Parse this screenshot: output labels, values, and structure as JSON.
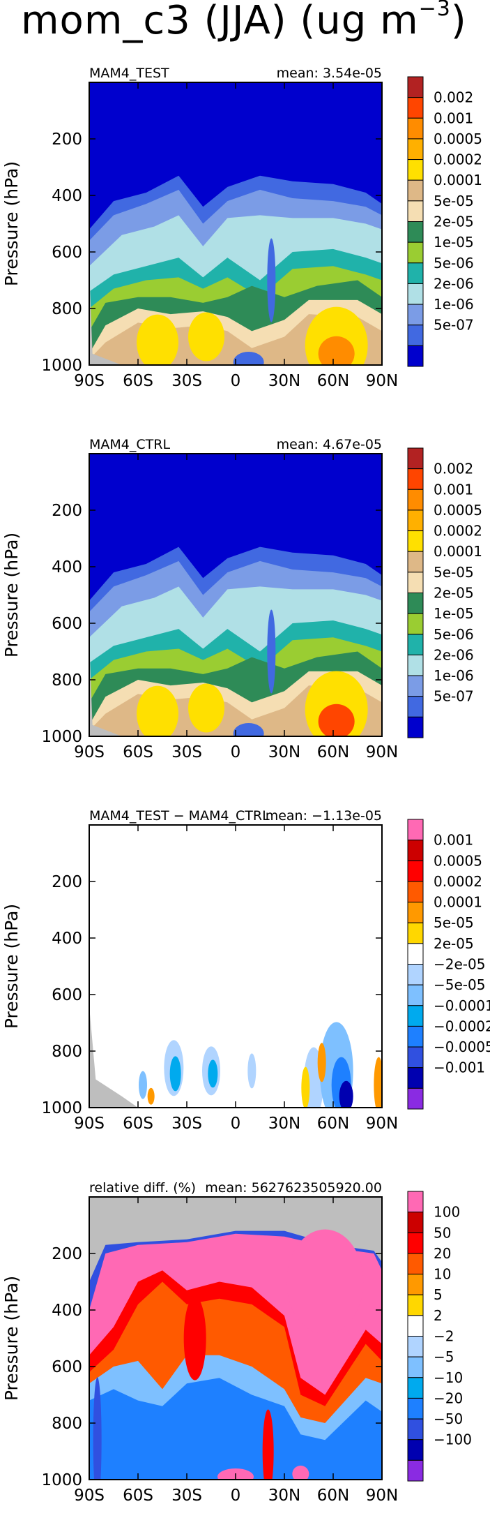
{
  "figure": {
    "title_main": "mom_c3 (JJA) (ug m",
    "title_sup": "−3",
    "title_close": ")"
  },
  "axes": {
    "ylabel": "Pressure (hPa)",
    "ylim": [
      0,
      1000
    ],
    "y_reversed": true,
    "y_ticks": [
      200,
      400,
      600,
      800,
      1000
    ],
    "x_range": [
      -90,
      90
    ],
    "x_ticks": [
      -90,
      -60,
      -30,
      0,
      30,
      60,
      90
    ],
    "x_tick_labels": [
      "90S",
      "60S",
      "30S",
      "0",
      "30N",
      "60N",
      "90N"
    ]
  },
  "chart_data": [
    {
      "type": "heatmap",
      "left_title": "MAM4_TEST",
      "right_title": "mean: 3.54e-05",
      "colorbar": {
        "labels": [
          "0.002",
          "0.001",
          "0.0005",
          "0.0002",
          "0.0001",
          "5e-05",
          "2e-05",
          "1e-05",
          "5e-06",
          "2e-06",
          "1e-06",
          "5e-07"
        ],
        "colors": [
          "#b22222",
          "#ff4500",
          "#ff8c00",
          "#ffb000",
          "#ffe000",
          "#deb887",
          "#f5deb3",
          "#2e8b57",
          "#9acd32",
          "#20b2aa",
          "#b0e0e6",
          "#7b9ce6",
          "#4169e1",
          "#0000cd"
        ]
      }
    },
    {
      "type": "heatmap",
      "left_title": "MAM4_CTRL",
      "right_title": "mean: 4.67e-05",
      "colorbar": {
        "labels": [
          "0.002",
          "0.001",
          "0.0005",
          "0.0002",
          "0.0001",
          "5e-05",
          "2e-05",
          "1e-05",
          "5e-06",
          "2e-06",
          "1e-06",
          "5e-07"
        ],
        "colors": [
          "#b22222",
          "#ff4500",
          "#ff8c00",
          "#ffb000",
          "#ffe000",
          "#deb887",
          "#f5deb3",
          "#2e8b57",
          "#9acd32",
          "#20b2aa",
          "#b0e0e6",
          "#7b9ce6",
          "#4169e1",
          "#0000cd"
        ]
      }
    },
    {
      "type": "heatmap",
      "left_title": "MAM4_TEST − MAM4_CTRL",
      "right_title": "mean: −1.13e-05",
      "colorbar": {
        "labels": [
          "0.001",
          "0.0005",
          "0.0002",
          "0.0001",
          "5e-05",
          "2e-05",
          "−2e-05",
          "−5e-05",
          "−0.0001",
          "−0.0002",
          "−0.0005",
          "−0.001"
        ],
        "colors": [
          "#ff69b4",
          "#cc0000",
          "#ff0000",
          "#ff5a00",
          "#ff9900",
          "#ffd700",
          "#ffffff",
          "#b0d4ff",
          "#7ec0ff",
          "#00aaee",
          "#1e80ff",
          "#3050e0",
          "#0000b0",
          "#8a2be2"
        ]
      }
    },
    {
      "type": "heatmap",
      "left_title": "relative diff. (%)",
      "right_title": "mean: 5627623505920.00",
      "colorbar": {
        "labels": [
          "100",
          "50",
          "20",
          "10",
          "5",
          "2",
          "−2",
          "−5",
          "−10",
          "−20",
          "−50",
          "−100"
        ],
        "colors": [
          "#ff69b4",
          "#cc0000",
          "#ff0000",
          "#ff5a00",
          "#ff9900",
          "#ffd700",
          "#ffffff",
          "#b0d4ff",
          "#7ec0ff",
          "#00aaee",
          "#1e80ff",
          "#3050e0",
          "#0000b0",
          "#8a2be2"
        ]
      }
    }
  ]
}
